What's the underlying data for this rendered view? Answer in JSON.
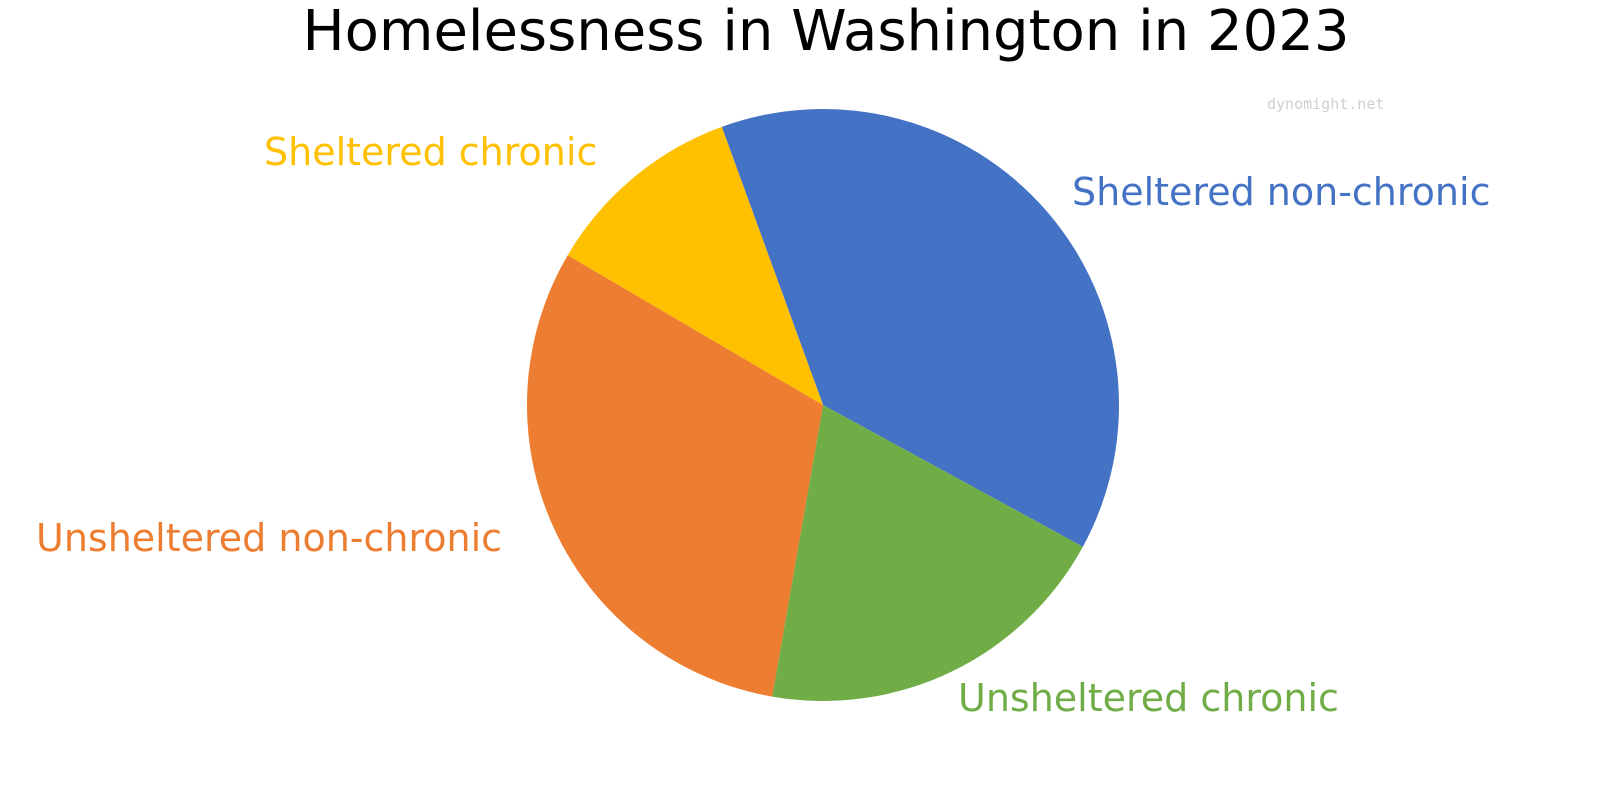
{
  "chart_data": {
    "type": "pie",
    "title": "Homelessness in Washington in 2023",
    "watermark": "dynomight.net",
    "slices": [
      {
        "label": "Sheltered non-chronic",
        "value": 38.5,
        "color": "#4472C4"
      },
      {
        "label": "Unsheltered chronic",
        "value": 19.8,
        "color": "#70AD47"
      },
      {
        "label": "Unsheltered non-chronic",
        "value": 30.7,
        "color": "#ED7D31"
      },
      {
        "label": "Sheltered chronic",
        "value": 11.0,
        "color": "#FFC000"
      }
    ]
  }
}
